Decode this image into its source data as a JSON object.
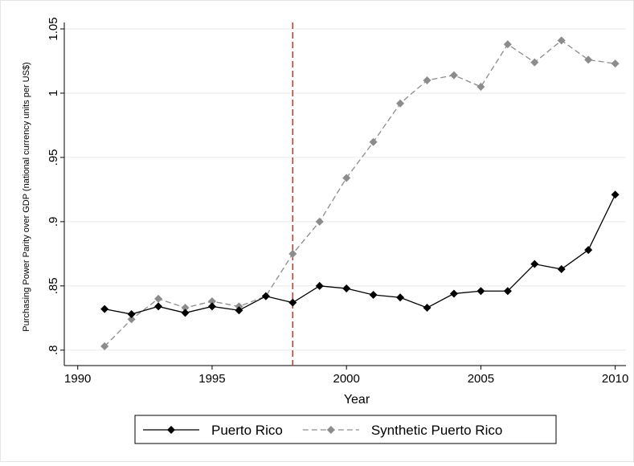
{
  "chart_data": {
    "type": "line",
    "x_label": "Year",
    "y_label": "Purchasing Power Parity over GDP (national currency units per US$)",
    "x": [
      1991,
      1992,
      1993,
      1994,
      1995,
      1996,
      1997,
      1998,
      1999,
      2000,
      2001,
      2002,
      2003,
      2004,
      2005,
      2006,
      2007,
      2008,
      2009,
      2010
    ],
    "series": [
      {
        "name": "Puerto Rico",
        "color": "#000000",
        "dash": "solid",
        "values": [
          0.832,
          0.828,
          0.834,
          0.829,
          0.834,
          0.831,
          0.842,
          0.837,
          0.85,
          0.848,
          0.843,
          0.841,
          0.833,
          0.844,
          0.846,
          0.846,
          0.867,
          0.863,
          0.878,
          0.921
        ]
      },
      {
        "name": "Synthetic Puerto Rico",
        "color": "#8c8c8c",
        "dash": "dashed",
        "values": [
          0.803,
          0.824,
          0.84,
          0.833,
          0.838,
          0.834,
          0.842,
          0.875,
          0.9,
          0.934,
          0.962,
          0.992,
          1.01,
          1.014,
          1.005,
          1.038,
          1.024,
          1.041,
          1.026,
          1.023
        ]
      }
    ],
    "vline": {
      "x": 1998,
      "color": "#c0392b"
    },
    "xlim": [
      1989.5,
      2010.4
    ],
    "ylim": [
      0.788,
      1.055
    ],
    "xticks": [
      1990,
      1995,
      2000,
      2005,
      2010
    ],
    "yticks": [
      {
        "value": 0.8,
        "label": ".8"
      },
      {
        "value": 0.85,
        "label": ".85"
      },
      {
        "value": 0.9,
        "label": ".9"
      },
      {
        "value": 0.95,
        "label": ".95"
      },
      1,
      {
        "value": 1.05,
        "label": "1.05"
      }
    ],
    "grid": true,
    "legend": "bottom"
  }
}
